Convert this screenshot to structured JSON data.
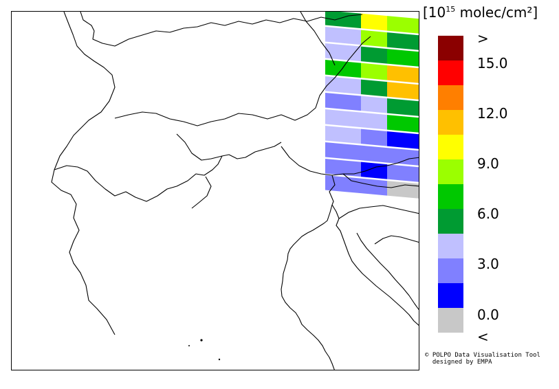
{
  "legend": {
    "unit_prefix": "[10",
    "unit_exponent": "15",
    "unit_suffix": " molec/cm²]",
    "ticks": [
      ">",
      "15.0",
      "12.0",
      "9.0",
      "6.0",
      "3.0",
      "0.0",
      "<"
    ],
    "colors": [
      "#8b0000",
      "#ff0000",
      "#ff7f00",
      "#ffc000",
      "#ffff00",
      "#9bff00",
      "#00c800",
      "#009b32",
      "#c0c0ff",
      "#8080ff",
      "#0000ff",
      "#c8c8c8"
    ]
  },
  "credit": {
    "line1": "© POLPO Data Visualisation Tool",
    "line2": "  designed by EMPA"
  },
  "swath": [
    [
      "#009b32",
      "#ffff00",
      "#9bff00"
    ],
    [
      "#c0c0ff",
      "#9bff00",
      "#009b32"
    ],
    [
      "#c0c0ff",
      "#009b32",
      "#00c800"
    ],
    [
      "#00c800",
      "#9bff00",
      "#ffc000"
    ],
    [
      "#c0c0ff",
      "#009b32",
      "#ffc000"
    ],
    [
      "#8080ff",
      "#c0c0ff",
      "#009b32"
    ],
    [
      "#c0c0ff",
      "#c0c0ff",
      "#00c800"
    ],
    [
      "#c0c0ff",
      "#8080ff",
      "#0000ff"
    ],
    [
      "#8080ff",
      "#8080ff",
      "#8080ff"
    ],
    [
      "#8080ff",
      "#0000ff",
      "#8080ff"
    ],
    [
      "#8080ff",
      "#8080ff",
      "#c8c8c8"
    ]
  ]
}
